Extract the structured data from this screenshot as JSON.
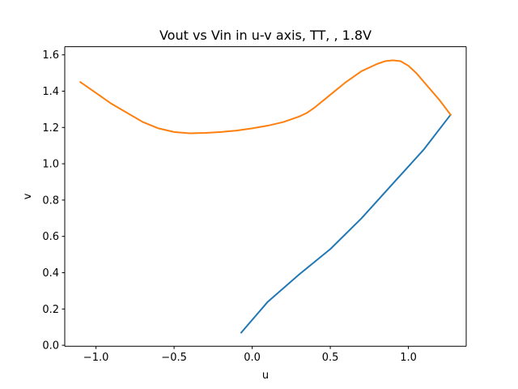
{
  "chart_data": {
    "type": "line",
    "title": "Vout vs Vin in u-v axis, TT, , 1.8V",
    "xlabel": "u",
    "ylabel": "v",
    "xlim": [
      -1.2,
      1.37
    ],
    "ylim": [
      -0.005,
      1.645
    ],
    "grid": false,
    "x_ticks": [
      -1.0,
      -0.5,
      0.0,
      0.5,
      1.0
    ],
    "x_tick_labels": [
      "−1.0",
      "−0.5",
      "0.0",
      "0.5",
      "1.0"
    ],
    "y_ticks": [
      0.0,
      0.2,
      0.4,
      0.6,
      0.8,
      1.0,
      1.2,
      1.4,
      1.6
    ],
    "y_tick_labels": [
      "0.0",
      "0.2",
      "0.4",
      "0.6",
      "0.8",
      "1.0",
      "1.2",
      "1.4",
      "1.6"
    ],
    "series": [
      {
        "color": "#1f77b4",
        "x": [
          -0.07,
          0.1,
          0.3,
          0.5,
          0.7,
          0.9,
          1.1,
          1.27
        ],
        "y": [
          0.07,
          0.24,
          0.39,
          0.53,
          0.7,
          0.89,
          1.08,
          1.27
        ]
      },
      {
        "color": "#ff7f0e",
        "x": [
          -1.1,
          -1.0,
          -0.9,
          -0.8,
          -0.7,
          -0.6,
          -0.5,
          -0.4,
          -0.3,
          -0.2,
          -0.1,
          0.0,
          0.1,
          0.2,
          0.3,
          0.35,
          0.4,
          0.5,
          0.6,
          0.7,
          0.8,
          0.85,
          0.9,
          0.95,
          1.0,
          1.05,
          1.1,
          1.2,
          1.27
        ],
        "y": [
          1.45,
          1.39,
          1.33,
          1.28,
          1.23,
          1.195,
          1.175,
          1.168,
          1.17,
          1.175,
          1.183,
          1.195,
          1.21,
          1.23,
          1.26,
          1.28,
          1.31,
          1.38,
          1.45,
          1.51,
          1.55,
          1.565,
          1.57,
          1.565,
          1.54,
          1.5,
          1.45,
          1.35,
          1.27
        ]
      }
    ]
  }
}
